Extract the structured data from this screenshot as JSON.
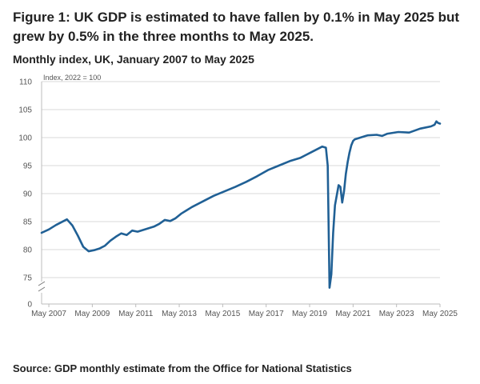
{
  "figure": {
    "title": "Figure 1: UK GDP is estimated to have fallen by 0.1% in May 2025 but grew by 0.5% in the three months to May 2025.",
    "subtitle": "Monthly index, UK, January 2007 to May 2025",
    "source": "Source: GDP monthly estimate from the Office for National Statistics"
  },
  "colors": {
    "line": "#206095",
    "grid": "#d9d9d9",
    "axis": "#bcbcbc"
  },
  "chart_data": {
    "type": "line",
    "title": "Figure 1: UK GDP is estimated to have fallen by 0.1% in May 2025 but grew by 0.5% in the three months to May 2025.",
    "subtitle": "Monthly index, UK, January 2007 to May 2025",
    "ylabel": "Index, 2022 = 100",
    "ylim": [
      0,
      110
    ],
    "y_axis_break": [
      0,
      72
    ],
    "yticks": [
      0,
      75,
      80,
      85,
      90,
      95,
      100,
      105,
      110
    ],
    "xlim": [
      "2007-01",
      "2025-05"
    ],
    "xticks": [
      "May 2007",
      "May 2009",
      "May 2011",
      "May 2013",
      "May 2015",
      "May 2017",
      "May 2019",
      "May 2021",
      "May 2023",
      "May 2025"
    ],
    "grid": "horizontal",
    "series": [
      {
        "name": "GDP",
        "x": [
          "2007-01",
          "2007-05",
          "2007-09",
          "2007-12",
          "2008-03",
          "2008-06",
          "2008-09",
          "2008-12",
          "2009-03",
          "2009-06",
          "2009-09",
          "2009-12",
          "2010-03",
          "2010-06",
          "2010-09",
          "2010-12",
          "2011-03",
          "2011-06",
          "2011-09",
          "2011-12",
          "2012-03",
          "2012-06",
          "2012-09",
          "2012-12",
          "2013-03",
          "2013-06",
          "2013-09",
          "2013-12",
          "2014-06",
          "2014-12",
          "2015-06",
          "2015-12",
          "2016-06",
          "2016-12",
          "2017-06",
          "2017-12",
          "2018-06",
          "2018-12",
          "2019-06",
          "2019-12",
          "2020-02",
          "2020-03",
          "2020-04",
          "2020-05",
          "2020-06",
          "2020-07",
          "2020-09",
          "2020-10",
          "2020-11",
          "2020-12",
          "2021-01",
          "2021-02",
          "2021-03",
          "2021-04",
          "2021-05",
          "2021-06",
          "2021-09",
          "2021-12",
          "2022-01",
          "2022-06",
          "2022-09",
          "2022-12",
          "2023-06",
          "2023-12",
          "2024-06",
          "2024-12",
          "2025-02",
          "2025-03",
          "2025-04",
          "2025-05"
        ],
        "values": [
          83.0,
          83.6,
          84.4,
          84.9,
          85.4,
          84.3,
          82.5,
          80.5,
          79.7,
          79.9,
          80.2,
          80.7,
          81.6,
          82.3,
          82.9,
          82.6,
          83.4,
          83.2,
          83.5,
          83.8,
          84.1,
          84.6,
          85.3,
          85.1,
          85.6,
          86.4,
          87.0,
          87.6,
          88.6,
          89.6,
          90.4,
          91.2,
          92.1,
          93.1,
          94.2,
          95.0,
          95.8,
          96.4,
          97.4,
          98.4,
          98.2,
          95.0,
          73.2,
          75.6,
          83.0,
          87.9,
          91.5,
          91.2,
          88.4,
          90.4,
          93.5,
          95.6,
          97.3,
          98.6,
          99.4,
          99.7,
          100.0,
          100.3,
          100.4,
          100.5,
          100.3,
          100.7,
          101.0,
          100.9,
          101.6,
          102.0,
          102.3,
          102.9,
          102.6,
          102.5
        ]
      }
    ]
  }
}
